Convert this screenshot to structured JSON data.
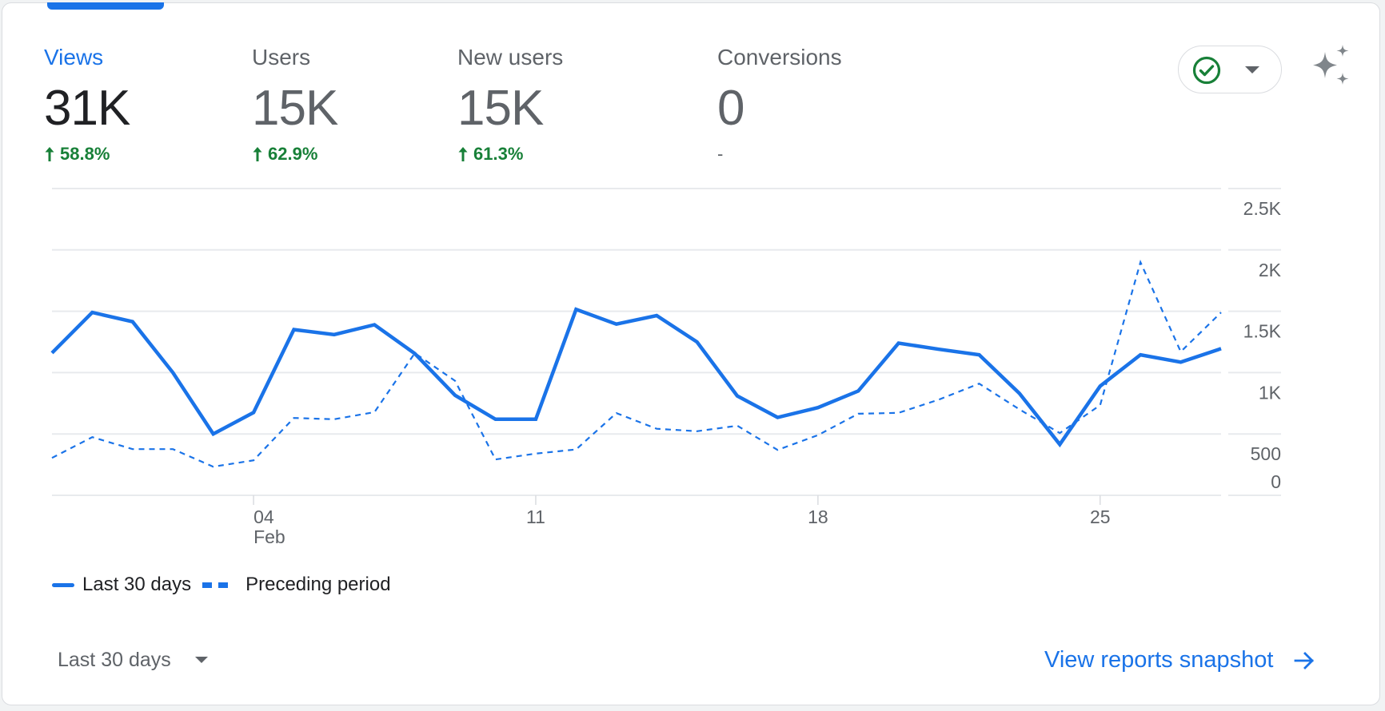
{
  "metrics": [
    {
      "label": "Views",
      "value": "31K",
      "delta": "58.8%",
      "trend": "up",
      "active": true
    },
    {
      "label": "Users",
      "value": "15K",
      "delta": "62.9%",
      "trend": "up",
      "active": false
    },
    {
      "label": "New users",
      "value": "15K",
      "delta": "61.3%",
      "trend": "up",
      "active": false
    },
    {
      "label": "Conversions",
      "value": "0",
      "delta": "-",
      "trend": "none",
      "active": false
    }
  ],
  "status_pill": {
    "icon": "check-circle-icon",
    "status": "ok"
  },
  "insights_icon": "sparkle-icon",
  "colors": {
    "accent": "#1a73e8",
    "positive": "#188038",
    "muted": "#5f6368",
    "text": "#202124",
    "grid": "#e8eaed"
  },
  "chart_data": {
    "type": "line",
    "title": "Views",
    "xlabel": "",
    "ylabel": "",
    "x": [
      "Jan 30",
      "Jan 31",
      "Feb 1",
      "Feb 2",
      "Feb 3",
      "Feb 4",
      "Feb 5",
      "Feb 6",
      "Feb 7",
      "Feb 8",
      "Feb 9",
      "Feb 10",
      "Feb 11",
      "Feb 12",
      "Feb 13",
      "Feb 14",
      "Feb 15",
      "Feb 16",
      "Feb 17",
      "Feb 18",
      "Feb 19",
      "Feb 20",
      "Feb 21",
      "Feb 22",
      "Feb 23",
      "Feb 24",
      "Feb 25",
      "Feb 26",
      "Feb 27",
      "Feb 28"
    ],
    "x_ticks": [
      {
        "index": 5,
        "label": "04",
        "sublabel": "Feb"
      },
      {
        "index": 12,
        "label": "11",
        "sublabel": ""
      },
      {
        "index": 19,
        "label": "18",
        "sublabel": ""
      },
      {
        "index": 26,
        "label": "25",
        "sublabel": ""
      }
    ],
    "y_ticks": [
      0,
      500,
      1000,
      1500,
      2000,
      2500
    ],
    "y_tick_labels": [
      "0",
      "500",
      "1K",
      "1.5K",
      "2K",
      "2.5K"
    ],
    "ylim": [
      0,
      2500
    ],
    "grid": true,
    "legend_position": "bottom-left",
    "series": [
      {
        "name": "Last 30 days",
        "style": "solid",
        "values": [
          1160,
          1490,
          1415,
          1000,
          500,
          675,
          1350,
          1310,
          1390,
          1155,
          815,
          620,
          620,
          1515,
          1395,
          1465,
          1250,
          810,
          635,
          715,
          850,
          1240,
          1190,
          1145,
          830,
          415,
          890,
          1145,
          1085,
          1195
        ]
      },
      {
        "name": "Preceding period",
        "style": "dashed",
        "values": [
          305,
          474,
          376,
          376,
          233,
          285,
          630,
          620,
          678,
          1158,
          933,
          292,
          340,
          374,
          670,
          542,
          522,
          567,
          370,
          490,
          665,
          672,
          780,
          910,
          700,
          507,
          735,
          1900,
          1170,
          1490
        ]
      }
    ]
  },
  "legend": {
    "items": [
      {
        "label": "Last 30 days",
        "style": "solid"
      },
      {
        "label": "Preceding period",
        "style": "dashed"
      }
    ]
  },
  "footer": {
    "date_range": "Last 30 days",
    "link_label": "View reports snapshot"
  }
}
